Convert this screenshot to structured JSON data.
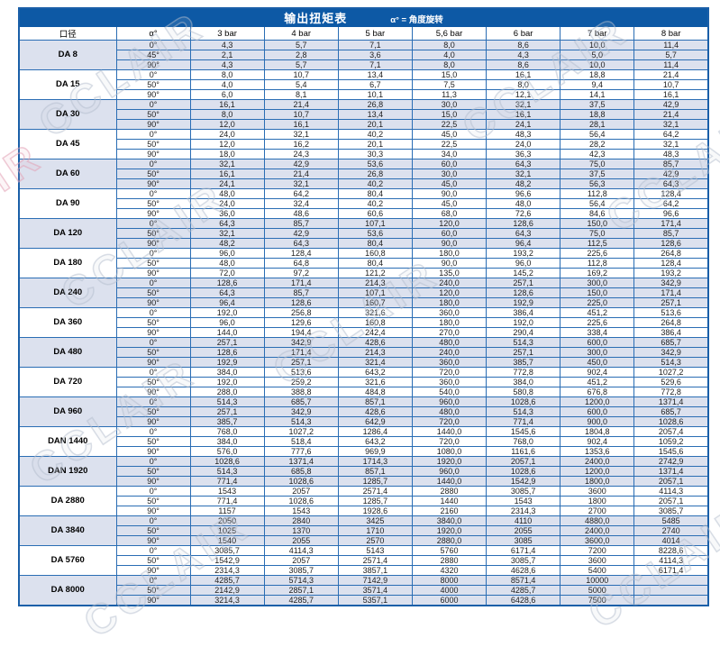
{
  "title": "输出扭矩表",
  "subtitle": "α° = 角度旋转",
  "watermark": "CCLAIR",
  "colors": {
    "title-bg": "#0d59a5",
    "border": "#2a6db4",
    "border-strong": "#1a5fa8",
    "shade": "#dce1ee",
    "text": "#222222"
  },
  "columns": [
    "口径",
    "α°",
    "3 bar",
    "4 bar",
    "5 bar",
    "5,6 bar",
    "6 bar",
    "7 bar",
    "8 bar"
  ],
  "groups": [
    {
      "model": "DA 8",
      "rows": [
        {
          "angle": "0°",
          "values": [
            "4,3",
            "5,7",
            "7,1",
            "8,0",
            "8,6",
            "10,0",
            "11,4"
          ]
        },
        {
          "angle": "45°",
          "values": [
            "2,1",
            "2,8",
            "3,6",
            "4,0",
            "4,3",
            "5,0",
            "5,7"
          ]
        },
        {
          "angle": "90°",
          "values": [
            "4,3",
            "5,7",
            "7,1",
            "8,0",
            "8,6",
            "10,0",
            "11,4"
          ]
        }
      ]
    },
    {
      "model": "DA 15",
      "rows": [
        {
          "angle": "0°",
          "values": [
            "8,0",
            "10,7",
            "13,4",
            "15,0",
            "16,1",
            "18,8",
            "21,4"
          ]
        },
        {
          "angle": "50°",
          "values": [
            "4,0",
            "5,4",
            "6,7",
            "7,5",
            "8,0",
            "9,4",
            "10,7"
          ]
        },
        {
          "angle": "90°",
          "values": [
            "6,0",
            "8,1",
            "10,1",
            "11,3",
            "12,1",
            "14,1",
            "16,1"
          ]
        }
      ]
    },
    {
      "model": "DA 30",
      "rows": [
        {
          "angle": "0°",
          "values": [
            "16,1",
            "21,4",
            "26,8",
            "30,0",
            "32,1",
            "37,5",
            "42,9"
          ]
        },
        {
          "angle": "50°",
          "values": [
            "8,0",
            "10,7",
            "13,4",
            "15,0",
            "16,1",
            "18,8",
            "21,4"
          ]
        },
        {
          "angle": "90°",
          "values": [
            "12,0",
            "16,1",
            "20,1",
            "22,5",
            "24,1",
            "28,1",
            "32,1"
          ]
        }
      ]
    },
    {
      "model": "DA 45",
      "rows": [
        {
          "angle": "0°",
          "values": [
            "24,0",
            "32,1",
            "40,2",
            "45,0",
            "48,3",
            "56,4",
            "64,2"
          ]
        },
        {
          "angle": "50°",
          "values": [
            "12,0",
            "16,2",
            "20,1",
            "22,5",
            "24,0",
            "28,2",
            "32,1"
          ]
        },
        {
          "angle": "90°",
          "values": [
            "18,0",
            "24,3",
            "30,3",
            "34,0",
            "36,3",
            "42,3",
            "48,3"
          ]
        }
      ]
    },
    {
      "model": "DA 60",
      "rows": [
        {
          "angle": "0°",
          "values": [
            "32,1",
            "42,9",
            "53,6",
            "60,0",
            "64,3",
            "75,0",
            "85,7"
          ]
        },
        {
          "angle": "50°",
          "values": [
            "16,1",
            "21,4",
            "26,8",
            "30,0",
            "32,1",
            "37,5",
            "42,9"
          ]
        },
        {
          "angle": "90°",
          "values": [
            "24,1",
            "32,1",
            "40,2",
            "45,0",
            "48,2",
            "56,3",
            "64,3"
          ]
        }
      ]
    },
    {
      "model": "DA 90",
      "rows": [
        {
          "angle": "0°",
          "values": [
            "48,0",
            "64,2",
            "80,4",
            "90,0",
            "96,6",
            "112,8",
            "128,4"
          ]
        },
        {
          "angle": "50°",
          "values": [
            "24,0",
            "32,4",
            "40,2",
            "45,0",
            "48,0",
            "56,4",
            "64,2"
          ]
        },
        {
          "angle": "90°",
          "values": [
            "36,0",
            "48,6",
            "60,6",
            "68,0",
            "72,6",
            "84,6",
            "96,6"
          ]
        }
      ]
    },
    {
      "model": "DA 120",
      "rows": [
        {
          "angle": "0°",
          "values": [
            "64,3",
            "85,7",
            "107,1",
            "120,0",
            "128,6",
            "150,0",
            "171,4"
          ]
        },
        {
          "angle": "50°",
          "values": [
            "32,1",
            "42,9",
            "53,6",
            "60,0",
            "64,3",
            "75,0",
            "85,7"
          ]
        },
        {
          "angle": "90°",
          "values": [
            "48,2",
            "64,3",
            "80,4",
            "90,0",
            "96,4",
            "112,5",
            "128,6"
          ]
        }
      ]
    },
    {
      "model": "DA 180",
      "rows": [
        {
          "angle": "0°",
          "values": [
            "96,0",
            "128,4",
            "160,8",
            "180,0",
            "193,2",
            "225,6",
            "264,8"
          ]
        },
        {
          "angle": "50°",
          "values": [
            "48,0",
            "64,8",
            "80,4",
            "90,0",
            "96,0",
            "112,8",
            "128,4"
          ]
        },
        {
          "angle": "90°",
          "values": [
            "72,0",
            "97,2",
            "121,2",
            "135,0",
            "145,2",
            "169,2",
            "193,2"
          ]
        }
      ]
    },
    {
      "model": "DA 240",
      "rows": [
        {
          "angle": "0°",
          "values": [
            "128,6",
            "171,4",
            "214,3",
            "240,0",
            "257,1",
            "300,0",
            "342,9"
          ]
        },
        {
          "angle": "50°",
          "values": [
            "64,3",
            "85,7",
            "107,1",
            "120,0",
            "128,6",
            "150,0",
            "171,4"
          ]
        },
        {
          "angle": "90°",
          "values": [
            "96,4",
            "128,6",
            "160,7",
            "180,0",
            "192,9",
            "225,0",
            "257,1"
          ]
        }
      ]
    },
    {
      "model": "DA 360",
      "rows": [
        {
          "angle": "0°",
          "values": [
            "192,0",
            "256,8",
            "321,6",
            "360,0",
            "386,4",
            "451,2",
            "513,6"
          ]
        },
        {
          "angle": "50°",
          "values": [
            "96,0",
            "129,6",
            "160,8",
            "180,0",
            "192,0",
            "225,6",
            "264,8"
          ]
        },
        {
          "angle": "90°",
          "values": [
            "144,0",
            "194,4",
            "242,4",
            "270,0",
            "290,4",
            "338,4",
            "386,4"
          ]
        }
      ]
    },
    {
      "model": "DA 480",
      "rows": [
        {
          "angle": "0°",
          "values": [
            "257,1",
            "342,9",
            "428,6",
            "480,0",
            "514,3",
            "600,0",
            "685,7"
          ]
        },
        {
          "angle": "50°",
          "values": [
            "128,6",
            "171,4",
            "214,3",
            "240,0",
            "257,1",
            "300,0",
            "342,9"
          ]
        },
        {
          "angle": "90°",
          "values": [
            "192,9",
            "257,1",
            "321,4",
            "360,0",
            "385,7",
            "450,0",
            "514,3"
          ]
        }
      ]
    },
    {
      "model": "DA 720",
      "rows": [
        {
          "angle": "0°",
          "values": [
            "384,0",
            "513,6",
            "643,2",
            "720,0",
            "772,8",
            "902,4",
            "1027,2"
          ]
        },
        {
          "angle": "50°",
          "values": [
            "192,0",
            "259,2",
            "321,6",
            "360,0",
            "384,0",
            "451,2",
            "529,6"
          ]
        },
        {
          "angle": "90°",
          "values": [
            "288,0",
            "388,8",
            "484,8",
            "540,0",
            "580,8",
            "676,8",
            "772,8"
          ]
        }
      ]
    },
    {
      "model": "DA 960",
      "rows": [
        {
          "angle": "0°",
          "values": [
            "514,3",
            "685,7",
            "857,1",
            "960,0",
            "1028,6",
            "1200,0",
            "1371,4"
          ]
        },
        {
          "angle": "50°",
          "values": [
            "257,1",
            "342,9",
            "428,6",
            "480,0",
            "514,3",
            "600,0",
            "685,7"
          ]
        },
        {
          "angle": "90°",
          "values": [
            "385,7",
            "514,3",
            "642,9",
            "720,0",
            "771,4",
            "900,0",
            "1028,6"
          ]
        }
      ]
    },
    {
      "model": "DAN 1440",
      "rows": [
        {
          "angle": "0°",
          "values": [
            "768,0",
            "1027,2",
            "1286,4",
            "1440,0",
            "1545,6",
            "1804,8",
            "2057,4"
          ]
        },
        {
          "angle": "50°",
          "values": [
            "384,0",
            "518,4",
            "643,2",
            "720,0",
            "768,0",
            "902,4",
            "1059,2"
          ]
        },
        {
          "angle": "90°",
          "values": [
            "576,0",
            "777,6",
            "969,9",
            "1080,0",
            "1161,6",
            "1353,6",
            "1545,6"
          ]
        }
      ]
    },
    {
      "model": "DAN 1920",
      "rows": [
        {
          "angle": "0°",
          "values": [
            "1028,6",
            "1371,4",
            "1714,3",
            "1920,0",
            "2057,1",
            "2400,0",
            "2742,9"
          ]
        },
        {
          "angle": "50°",
          "values": [
            "514,3",
            "685,8",
            "857,1",
            "960,0",
            "1028,6",
            "1200,0",
            "1371,4"
          ]
        },
        {
          "angle": "90°",
          "values": [
            "771,4",
            "1028,6",
            "1285,7",
            "1440,0",
            "1542,9",
            "1800,0",
            "2057,1"
          ]
        }
      ]
    },
    {
      "model": "DA 2880",
      "rows": [
        {
          "angle": "0°",
          "values": [
            "1543",
            "2057",
            "2571,4",
            "2880",
            "3085,7",
            "3600",
            "4114,3"
          ]
        },
        {
          "angle": "50°",
          "values": [
            "771,4",
            "1028,6",
            "1285,7",
            "1440",
            "1543",
            "1800",
            "2057,1"
          ]
        },
        {
          "angle": "90°",
          "values": [
            "1157",
            "1543",
            "1928,6",
            "2160",
            "2314,3",
            "2700",
            "3085,7"
          ]
        }
      ]
    },
    {
      "model": "DA 3840",
      "rows": [
        {
          "angle": "0°",
          "values": [
            "2050",
            "2840",
            "3425",
            "3840,0",
            "4110",
            "4880,0",
            "5485"
          ]
        },
        {
          "angle": "50°",
          "values": [
            "1025",
            "1370",
            "1710",
            "1920,0",
            "2055",
            "2400,0",
            "2740"
          ]
        },
        {
          "angle": "90°",
          "values": [
            "1540",
            "2055",
            "2570",
            "2880,0",
            "3085",
            "3600,0",
            "4014"
          ]
        }
      ]
    },
    {
      "model": "DA 5760",
      "rows": [
        {
          "angle": "0°",
          "values": [
            "3085,7",
            "4114,3",
            "5143",
            "5760",
            "6171,4",
            "7200",
            "8228,6"
          ]
        },
        {
          "angle": "50°",
          "values": [
            "1542,9",
            "2057",
            "2571,4",
            "2880",
            "3085,7",
            "3600",
            "4114,3"
          ]
        },
        {
          "angle": "90°",
          "values": [
            "2314,3",
            "3085,7",
            "3857,1",
            "4320",
            "4628,6",
            "5400",
            "6171,4"
          ]
        }
      ]
    },
    {
      "model": "DA 8000",
      "rows": [
        {
          "angle": "0°",
          "values": [
            "4285,7",
            "5714,3",
            "7142,9",
            "8000",
            "8571,4",
            "10000",
            ""
          ]
        },
        {
          "angle": "50°",
          "values": [
            "2142,9",
            "2857,1",
            "3571,4",
            "4000",
            "4285,7",
            "5000",
            ""
          ]
        },
        {
          "angle": "90°",
          "values": [
            "3214,3",
            "4285,7",
            "5357,1",
            "6000",
            "6428,6",
            "7500",
            ""
          ]
        }
      ]
    }
  ]
}
